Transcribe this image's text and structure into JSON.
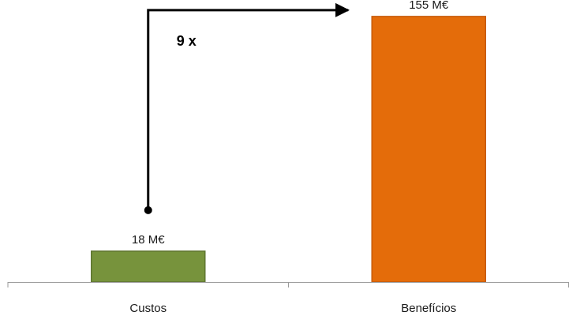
{
  "chart_data": {
    "type": "bar",
    "categories": [
      "Custos",
      "Benefícios"
    ],
    "values": [
      18,
      155
    ],
    "data_labels": [
      "18 M€",
      "155 M€"
    ],
    "colors": [
      "#77933C",
      "#E46C0A"
    ],
    "border_colors": [
      "#5E7530",
      "#C65A08"
    ],
    "unit": "M€",
    "title": "",
    "xlabel": "",
    "ylabel": "",
    "ylim": [
      0,
      160
    ],
    "grid": false,
    "legend": "none",
    "annotation": {
      "type": "growth-arrow",
      "label": "9 x"
    }
  }
}
